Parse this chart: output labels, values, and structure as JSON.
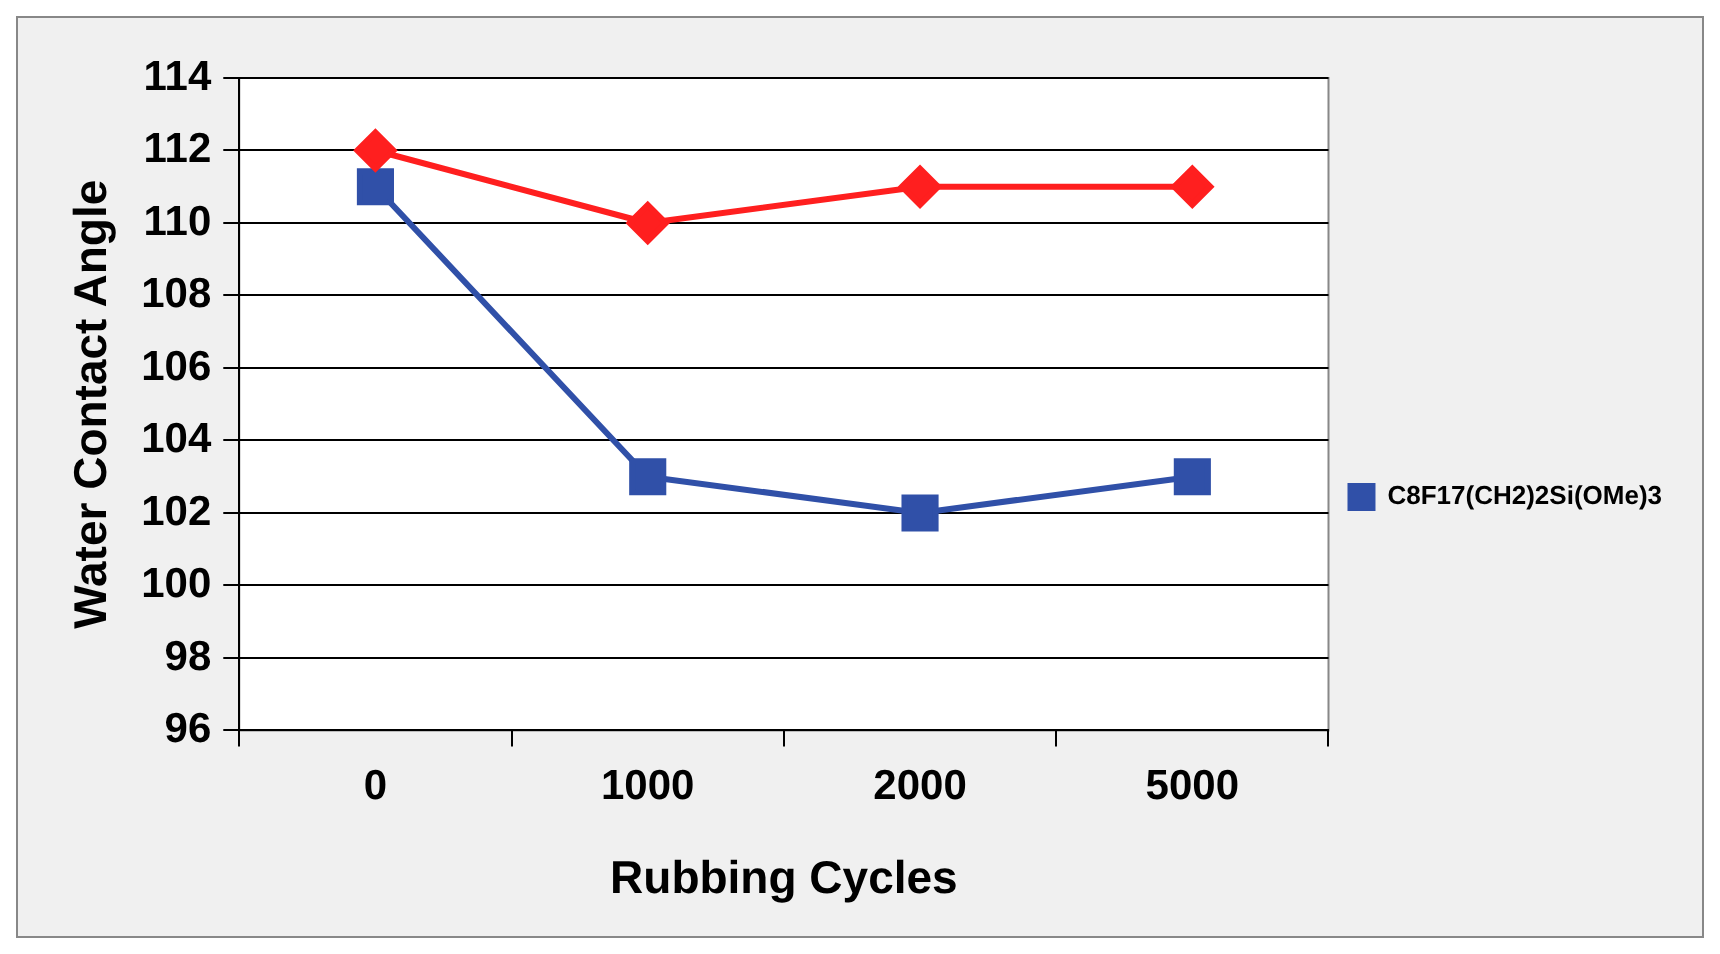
{
  "chart_data": {
    "type": "line",
    "xlabel": "Rubbing Cycles",
    "ylabel": "Water Contact Angle",
    "categories": [
      "0",
      "1000",
      "2000",
      "5000"
    ],
    "series": [
      {
        "color": "#ff1f1f",
        "marker": "diamond",
        "values": [
          112,
          110,
          111,
          111
        ]
      },
      {
        "name": "C8F17(CH2)2Si(OMe)3",
        "color": "#3050a8",
        "marker": "square",
        "values": [
          111,
          103,
          102,
          103
        ]
      }
    ],
    "ylim": [
      96,
      114
    ],
    "yticks": [
      96,
      98,
      100,
      102,
      104,
      106,
      108,
      110,
      112,
      114
    ],
    "grid": "y",
    "legend": "right"
  }
}
